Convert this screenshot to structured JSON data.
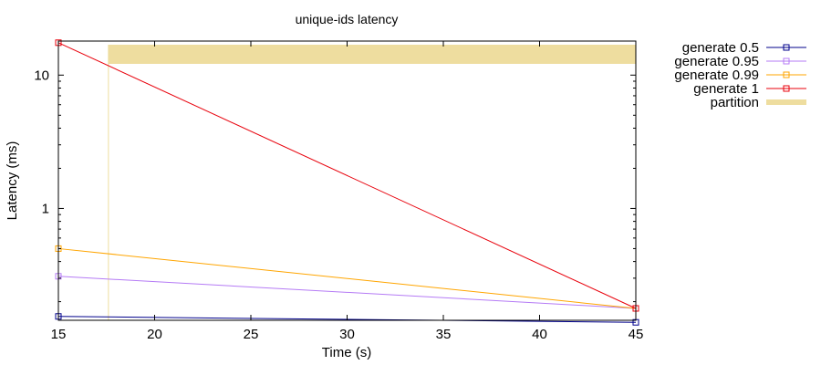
{
  "chart_data": {
    "type": "line",
    "title": "unique-ids latency",
    "xlabel": "Time (s)",
    "ylabel": "Latency (ms)",
    "xlim": [
      15,
      45
    ],
    "ylim": [
      0.145,
      18
    ],
    "yscale": "log",
    "grid": false,
    "legend_placement": "outside-right-top",
    "xticks": [
      15,
      20,
      25,
      30,
      35,
      40,
      45
    ],
    "yticks": [
      1,
      10
    ],
    "series": [
      {
        "name": "generate 0.5",
        "color": "#00008b",
        "marker": "square-open",
        "x": [
          15,
          45
        ],
        "y": [
          0.155,
          0.14
        ]
      },
      {
        "name": "generate 0.95",
        "color": "#b57bf5",
        "marker": "square-open",
        "x": [
          15,
          45
        ],
        "y": [
          0.31,
          0.178
        ]
      },
      {
        "name": "generate 0.99",
        "color": "#ffa500",
        "marker": "square-open",
        "x": [
          15,
          45
        ],
        "y": [
          0.5,
          0.178
        ]
      },
      {
        "name": "generate 1",
        "color": "#e8000b",
        "marker": "square-open",
        "x": [
          15,
          45
        ],
        "y": [
          17.5,
          0.178
        ]
      }
    ],
    "partition": {
      "name": "partition",
      "color": "#eedd9f",
      "x_start": 17.6,
      "x_end": 45
    }
  }
}
